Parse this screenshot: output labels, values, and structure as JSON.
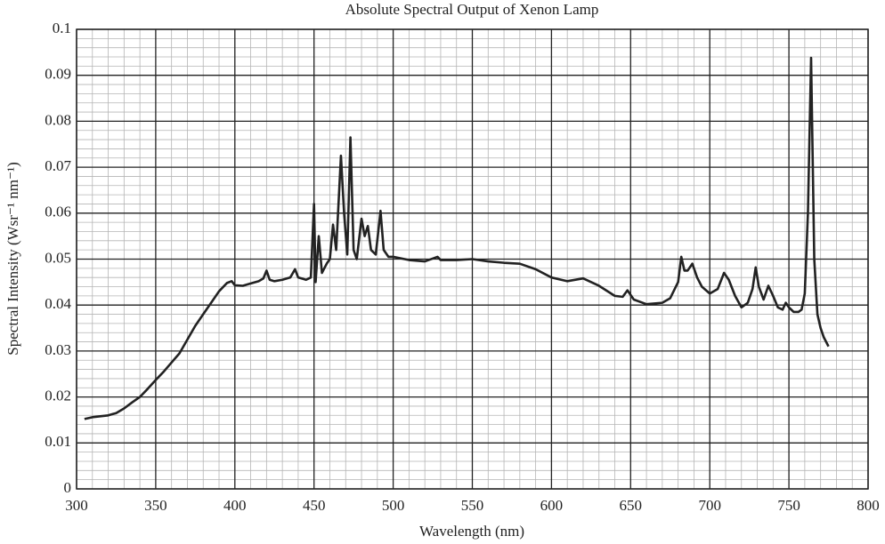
{
  "chart_data": {
    "type": "line",
    "title": "Absolute Spectral Output of Xenon Lamp",
    "xlabel": "Wavelength (nm)",
    "ylabel": "Spectral Intensity (Wsr⁻¹ nm⁻¹)",
    "color": "#222222",
    "grid": true,
    "minor_grid": {
      "x": 10,
      "y": 0.002
    },
    "xlim": [
      300,
      800
    ],
    "xticks": [
      300,
      350,
      400,
      450,
      500,
      550,
      600,
      650,
      700,
      750,
      800
    ],
    "ylim": [
      0,
      0.1
    ],
    "yticks": [
      0,
      0.01,
      0.02,
      0.03,
      0.04,
      0.05,
      0.06,
      0.07,
      0.08,
      0.09,
      0.1
    ],
    "x": [
      305,
      310,
      315,
      320,
      325,
      330,
      335,
      340,
      345,
      350,
      355,
      360,
      365,
      370,
      375,
      380,
      385,
      390,
      395,
      398,
      400,
      405,
      410,
      415,
      418,
      420,
      422,
      425,
      430,
      435,
      438,
      440,
      445,
      448,
      450,
      451,
      453,
      455,
      458,
      460,
      462,
      464,
      467,
      469,
      471,
      473,
      475,
      477,
      480,
      482,
      484,
      486,
      489,
      492,
      494,
      497,
      500,
      510,
      520,
      528,
      530,
      540,
      550,
      560,
      570,
      580,
      590,
      600,
      610,
      620,
      630,
      640,
      645,
      648,
      652,
      660,
      670,
      675,
      680,
      682,
      684,
      686,
      689,
      692,
      695,
      700,
      705,
      709,
      712,
      716,
      720,
      724,
      727,
      729,
      731,
      734,
      737,
      740,
      743,
      746,
      748,
      750,
      753,
      756,
      758,
      760,
      762,
      764,
      766,
      768,
      770,
      772,
      775
    ],
    "values": [
      0.0152,
      0.0156,
      0.0158,
      0.016,
      0.0165,
      0.0175,
      0.0188,
      0.02,
      0.0218,
      0.0237,
      0.0255,
      0.0275,
      0.0295,
      0.0325,
      0.0355,
      0.038,
      0.0405,
      0.043,
      0.0448,
      0.0452,
      0.0443,
      0.0442,
      0.0447,
      0.0452,
      0.0458,
      0.0475,
      0.0455,
      0.0452,
      0.0455,
      0.046,
      0.0478,
      0.046,
      0.0455,
      0.046,
      0.062,
      0.045,
      0.055,
      0.047,
      0.049,
      0.05,
      0.0575,
      0.052,
      0.0725,
      0.06,
      0.051,
      0.0765,
      0.052,
      0.05,
      0.0588,
      0.055,
      0.0572,
      0.052,
      0.051,
      0.0605,
      0.052,
      0.0505,
      0.0505,
      0.0498,
      0.0495,
      0.0505,
      0.0498,
      0.0498,
      0.05,
      0.0495,
      0.0492,
      0.049,
      0.0478,
      0.046,
      0.0452,
      0.0458,
      0.0442,
      0.042,
      0.0418,
      0.0432,
      0.0412,
      0.0402,
      0.0405,
      0.0415,
      0.045,
      0.0505,
      0.0475,
      0.0475,
      0.049,
      0.046,
      0.044,
      0.0425,
      0.0435,
      0.047,
      0.0455,
      0.042,
      0.0395,
      0.0405,
      0.0435,
      0.0482,
      0.044,
      0.0412,
      0.0442,
      0.042,
      0.0395,
      0.039,
      0.0405,
      0.0395,
      0.0385,
      0.0385,
      0.039,
      0.0425,
      0.06,
      0.0938,
      0.05,
      0.038,
      0.035,
      0.033,
      0.031
    ]
  }
}
